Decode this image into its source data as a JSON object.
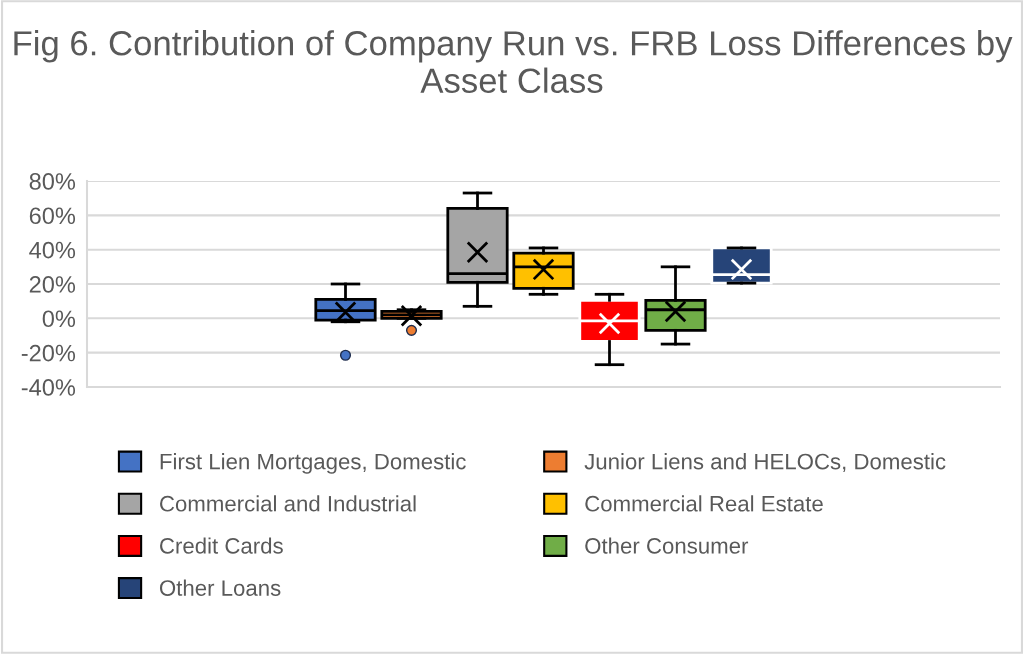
{
  "chart_data": {
    "type": "box",
    "title": "Fig 6. Contribution of Company Run vs. FRB Loss Differences by Asset Class",
    "categories": [
      null
    ],
    "series": [
      {
        "name": "First Lien Mortgages, Domestic",
        "color": "#4472c4",
        "boxes": [
          {
            "low": -2,
            "q1": -1,
            "median": 4.5,
            "q3": 11,
            "high": 20,
            "mean": 3.5,
            "outliers": [
              -21.5
            ]
          }
        ]
      },
      {
        "name": "Junior Liens and HELOCs, Domestic",
        "color": "#ed7d31",
        "boxes": [
          {
            "low": 0,
            "q1": 0,
            "median": 2,
            "q3": 4,
            "high": 5,
            "mean": 1.5,
            "outliers": [
              -7
            ]
          }
        ]
      },
      {
        "name": "Commercial and Industrial",
        "color": "#a5a5a5",
        "boxes": [
          {
            "low": 7,
            "q1": 21,
            "median": 26,
            "q3": 64,
            "high": 73,
            "mean": 38.5
          }
        ]
      },
      {
        "name": "Commercial Real Estate",
        "color": "#ffc000",
        "boxes": [
          {
            "low": 14,
            "q1": 17.5,
            "median": 30,
            "q3": 38,
            "high": 41,
            "mean": 28.5
          }
        ]
      },
      {
        "name": "Credit Cards",
        "color": "#ff0000",
        "boxes": [
          {
            "low": -27,
            "q1": -13.5,
            "median": -1.5,
            "q3": 10.5,
            "high": 14,
            "mean": -3
          }
        ]
      },
      {
        "name": "Other Consumer",
        "color": "#70ad47",
        "boxes": [
          {
            "low": -15,
            "q1": -7,
            "median": 5,
            "q3": 10.5,
            "high": 30,
            "mean": 4
          }
        ]
      },
      {
        "name": "Other Loans",
        "color": "#264478",
        "boxes": [
          {
            "low": 20.5,
            "q1": 20.5,
            "median": 25.5,
            "q3": 41,
            "high": 41,
            "mean": 28.5
          }
        ]
      }
    ],
    "ylim": [
      -40,
      80
    ],
    "yticks": [
      {
        "value": -40,
        "label": "-40%"
      },
      {
        "value": -20,
        "label": "-20%"
      },
      {
        "value": 0,
        "label": "0%"
      },
      {
        "value": 20,
        "label": "20%"
      },
      {
        "value": 40,
        "label": "40%"
      },
      {
        "value": 60,
        "label": "60%"
      },
      {
        "value": 80,
        "label": "80%"
      }
    ],
    "grid": "y",
    "legend": "bottom",
    "marker": "cross"
  }
}
